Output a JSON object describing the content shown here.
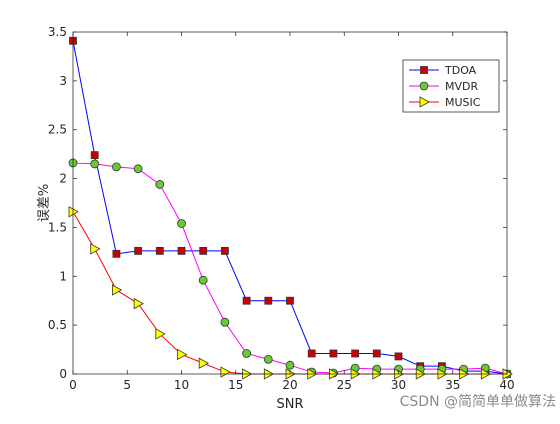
{
  "chart_data": {
    "type": "line",
    "xlabel": "SNR",
    "ylabel": "误差%",
    "xlim": [
      0,
      40
    ],
    "ylim": [
      0,
      3.5
    ],
    "xticks": [
      0,
      5,
      10,
      15,
      20,
      25,
      30,
      35,
      40
    ],
    "yticks": [
      0,
      0.5,
      1,
      1.5,
      2,
      2.5,
      3,
      3.5
    ],
    "grid": false,
    "legend_position": "top-right",
    "x": [
      0,
      2,
      4,
      6,
      8,
      10,
      12,
      14,
      16,
      18,
      20,
      22,
      24,
      26,
      28,
      30,
      32,
      34,
      36,
      38,
      40
    ],
    "series": [
      {
        "name": "TDOA",
        "color": "#0000ff",
        "marker": "square",
        "marker_fill": "#cc0000",
        "values": [
          3.41,
          2.24,
          1.23,
          1.26,
          1.26,
          1.26,
          1.26,
          1.26,
          0.75,
          0.75,
          0.75,
          0.21,
          0.21,
          0.21,
          0.21,
          0.18,
          0.08,
          0.08,
          0.03,
          0.03,
          0.0
        ]
      },
      {
        "name": "MVDR",
        "color": "#ff00ff",
        "marker": "circle",
        "marker_fill": "#66cc33",
        "values": [
          2.16,
          2.15,
          2.12,
          2.1,
          1.94,
          1.54,
          0.96,
          0.53,
          0.21,
          0.15,
          0.09,
          0.02,
          0.01,
          0.06,
          0.05,
          0.05,
          0.05,
          0.05,
          0.05,
          0.06,
          0.0
        ]
      },
      {
        "name": "MUSIC",
        "color": "#ff0000",
        "marker": "triangle-right",
        "marker_fill": "#ffff00",
        "values": [
          1.66,
          1.28,
          0.86,
          0.72,
          0.41,
          0.2,
          0.11,
          0.02,
          0.0,
          0.0,
          0.0,
          0.0,
          0.0,
          0.0,
          0.0,
          0.0,
          0.0,
          0.0,
          0.0,
          0.0,
          0.0
        ]
      }
    ]
  },
  "watermark": "CSDN @简简单单做算法"
}
